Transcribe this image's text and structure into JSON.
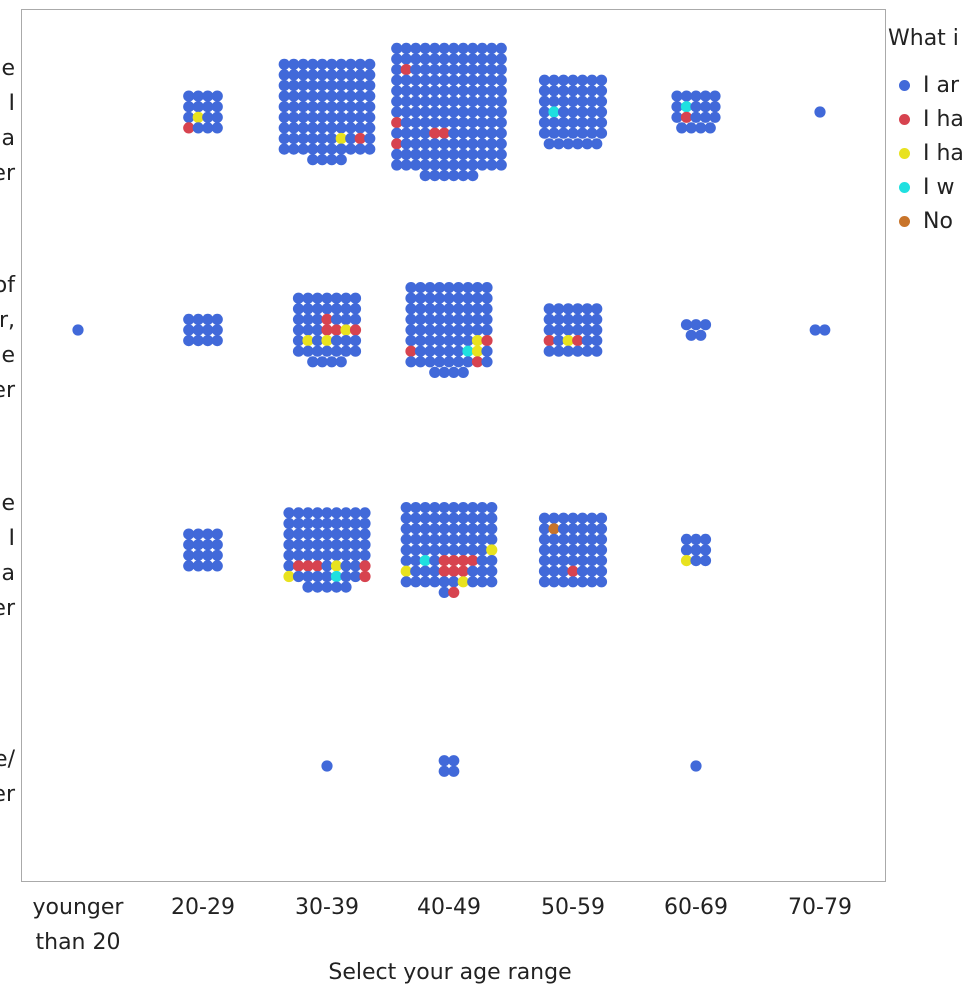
{
  "chart_data": {
    "type": "scatter",
    "subtype": "beeswarm",
    "xlabel": "Select your age range",
    "x_categories": [
      "younger than 20",
      "20-29",
      "30-39",
      "40-49",
      "50-59",
      "60-69",
      "70-79"
    ],
    "y_category_label_fragments": [
      [
        "e",
        "I",
        "a",
        "er"
      ],
      [
        "of",
        "r,",
        "e",
        "er"
      ],
      [
        "e",
        "I",
        "a",
        "er"
      ],
      [
        "e/",
        "er"
      ]
    ],
    "legend": {
      "title": "What i",
      "placement": "right",
      "entries": [
        {
          "key": "B",
          "label": "I ar",
          "color": "#4169d9"
        },
        {
          "key": "R",
          "label": "I ha",
          "color": "#d7434f"
        },
        {
          "key": "Y",
          "label": "I ha",
          "color": "#e8e21f"
        },
        {
          "key": "C",
          "label": "I w",
          "color": "#1fe0e0"
        },
        {
          "key": "O",
          "label": "No",
          "color": "#c8742a"
        }
      ]
    },
    "grid": false,
    "clusters": [
      {
        "x": "20-29",
        "y": 0,
        "rows": [
          "BBBB",
          "BBBB",
          "BYBB",
          "RBBB"
        ]
      },
      {
        "x": "30-39",
        "y": 0,
        "rows": [
          "BBBBBBBBBB",
          "BBBBBBBBBB",
          "BBBBBBBBBB",
          "BBBBBBBBBB",
          "BBBBBBBBBB",
          "BBBBBBBBBB",
          "BBBBBBBBBB",
          "BBBBBBYBRB",
          "BBBBBBBBBB",
          "BBBB"
        ]
      },
      {
        "x": "40-49",
        "y": 0,
        "rows": [
          "BBBBBBBBBBBB",
          "BBBBBBBBBBBB",
          "BRBBBBBBBBBB",
          "BBBBBBBBBBBB",
          "BBBBBBBBBBBB",
          "BBBBBBBBBBBB",
          "BBBBBBBBBBBB",
          "RBBBBBBBBBBB",
          "BBBBRRBBBBBB",
          "RBBBBBBBBBBB",
          "BBBBBBBBBBBB",
          "BBBBBBBBBBBB",
          "BBBBBB"
        ]
      },
      {
        "x": "50-59",
        "y": 0,
        "rows": [
          "BBBBBBB",
          "BBBBBBB",
          "BBBBBBB",
          "BCBBBBB",
          "BBBBBBB",
          "BBBBBBB",
          "BBBBBB"
        ]
      },
      {
        "x": "60-69",
        "y": 0,
        "rows": [
          "BBBBB",
          "BCBBB",
          "BRBBB",
          "BBBB"
        ]
      },
      {
        "x": "70-79",
        "y": 0,
        "rows": [
          "B"
        ]
      },
      {
        "x": "younger than 20",
        "y": 1,
        "rows": [
          "B"
        ]
      },
      {
        "x": "20-29",
        "y": 1,
        "rows": [
          "BBBB",
          "BBBB",
          "BBBB"
        ]
      },
      {
        "x": "30-39",
        "y": 1,
        "rows": [
          "BBBBBBB",
          "BBBBBBB",
          "BBBRBBB",
          "BBBRRYR",
          "BYBYBBB",
          "BBBBBBB",
          "BBBB"
        ]
      },
      {
        "x": "40-49",
        "y": 1,
        "rows": [
          "BBBBBBBBB",
          "BBBBBBBBB",
          "BBBBBBBBB",
          "BBBBBBBBB",
          "BBBBBBBBB",
          "BBBBBBBYR",
          "RBBBBBCYB",
          "BBBBBBBRB",
          "BBBB"
        ]
      },
      {
        "x": "50-59",
        "y": 1,
        "rows": [
          "BBBBBB",
          "BBBBBB",
          "BBBBBB",
          "RBYRBB",
          "BBBBBB"
        ]
      },
      {
        "x": "60-69",
        "y": 1,
        "rows": [
          "BBB",
          "BB"
        ]
      },
      {
        "x": "70-79",
        "y": 1,
        "rows": [
          "BB"
        ]
      },
      {
        "x": "20-29",
        "y": 2,
        "rows": [
          "BBBB",
          "BBBB",
          "BBBB",
          "BBBB"
        ]
      },
      {
        "x": "30-39",
        "y": 2,
        "rows": [
          "BBBBBBBBB",
          "BBBBBBBBB",
          "BBBBBBBBB",
          "BBBBBBBBB",
          "BBBBBBBBB",
          "BRRRBYBBR",
          "YBBBBCBBR",
          "BBBBB"
        ]
      },
      {
        "x": "40-49",
        "y": 2,
        "rows": [
          "BBBBBBBBBB",
          "BBBBBBBBBB",
          "BBBBBBBBBB",
          "BBBBBBBBBB",
          "BBBBBBBBBY",
          "BBCBRRRRBB",
          "YBBBRRRBBB",
          "BBBBBBYBBB",
          "BR"
        ]
      },
      {
        "x": "50-59",
        "y": 2,
        "rows": [
          "BBBBBBB",
          "BOBBBBB",
          "BBBBBBB",
          "BBBBBBB",
          "BBBBBBB",
          "BBBRBBB",
          "BBBBBBB"
        ]
      },
      {
        "x": "60-69",
        "y": 2,
        "rows": [
          "BBB",
          "BBB",
          "YBB"
        ]
      },
      {
        "x": "30-39",
        "y": 3,
        "rows": [
          "B"
        ]
      },
      {
        "x": "40-49",
        "y": 3,
        "rows": [
          "BB",
          "BB"
        ]
      },
      {
        "x": "60-69",
        "y": 3,
        "rows": [
          "B"
        ]
      }
    ]
  }
}
